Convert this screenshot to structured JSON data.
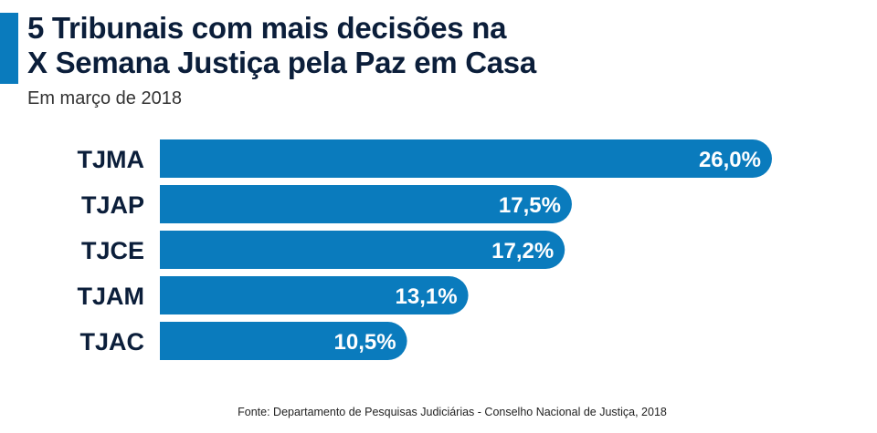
{
  "header": {
    "title_line1": "5 Tribunais com mais decisões na",
    "title_line2": "X Semana Justiça pela Paz em Casa",
    "subtitle": "Em março de 2018"
  },
  "footer": {
    "source": "Fonte: Departamento de Pesquisas Judiciárias - Conselho Nacional de Justiça, 2018"
  },
  "colors": {
    "bar": "#0a7bbd",
    "accent": "#0a7bbd",
    "title": "#0b1e3a",
    "label": "#0b1e3a",
    "value_text": "#ffffff"
  },
  "chart_data": {
    "type": "bar",
    "orientation": "horizontal",
    "title": "5 Tribunais com mais decisões na X Semana Justiça pela Paz em Casa",
    "subtitle": "Em março de 2018",
    "categories": [
      "TJMA",
      "TJAP",
      "TJCE",
      "TJAM",
      "TJAC"
    ],
    "values": [
      26.0,
      17.5,
      17.2,
      13.1,
      10.5
    ],
    "value_labels": [
      "26,0%",
      "17,5%",
      "17,2%",
      "13,1%",
      "10,5%"
    ],
    "unit": "%",
    "xlim": [
      0,
      26.0
    ],
    "grid": false,
    "legend": "none"
  }
}
